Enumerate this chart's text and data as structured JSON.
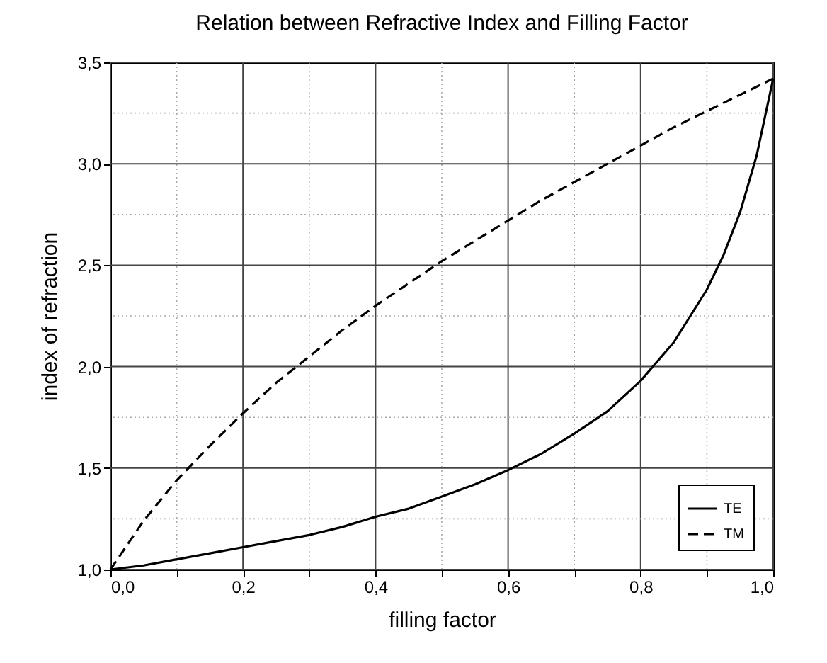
{
  "chart_data": {
    "type": "line",
    "title": "Relation between Refractive Index and Filling Factor",
    "xlabel": "filling factor",
    "ylabel": "index of refraction",
    "xlim": [
      0,
      1
    ],
    "ylim": [
      1,
      3.5
    ],
    "xticks": [
      {
        "value": 0,
        "label": "0,0"
      },
      {
        "value": 0.1,
        "label": null
      },
      {
        "value": 0.2,
        "label": "0,2"
      },
      {
        "value": 0.3,
        "label": null
      },
      {
        "value": 0.4,
        "label": "0,4"
      },
      {
        "value": 0.5,
        "label": null
      },
      {
        "value": 0.6,
        "label": "0,6"
      },
      {
        "value": 0.7,
        "label": null
      },
      {
        "value": 0.8,
        "label": "0,8"
      },
      {
        "value": 0.9,
        "label": null
      },
      {
        "value": 1,
        "label": "1,0"
      }
    ],
    "yticks": [
      {
        "value": 1,
        "label": "1,0"
      },
      {
        "value": 1.25,
        "label": null
      },
      {
        "value": 1.5,
        "label": "1,5"
      },
      {
        "value": 1.75,
        "label": null
      },
      {
        "value": 2,
        "label": "2,0"
      },
      {
        "value": 2.25,
        "label": null
      },
      {
        "value": 2.5,
        "label": "2,5"
      },
      {
        "value": 2.75,
        "label": null
      },
      {
        "value": 3,
        "label": "3,0"
      },
      {
        "value": 3.25,
        "label": null
      },
      {
        "value": 3.5,
        "label": "3,5"
      }
    ],
    "grid": true,
    "legend": "bottom right",
    "marker": "none",
    "series": [
      {
        "name": "TE",
        "color": "#000000",
        "line_style": "solid",
        "x": [
          0,
          0.05,
          0.1,
          0.15,
          0.2,
          0.25,
          0.3,
          0.35,
          0.4,
          0.45,
          0.5,
          0.55,
          0.6,
          0.65,
          0.7,
          0.75,
          0.8,
          0.85,
          0.9,
          0.925,
          0.95,
          0.975,
          1
        ],
        "values": [
          1,
          1.02,
          1.05,
          1.08,
          1.11,
          1.14,
          1.17,
          1.21,
          1.26,
          1.3,
          1.36,
          1.42,
          1.49,
          1.57,
          1.67,
          1.78,
          1.93,
          2.12,
          2.38,
          2.55,
          2.76,
          3.04,
          3.42
        ]
      },
      {
        "name": "TM",
        "color": "#000000",
        "line_style": "dashed",
        "x": [
          0,
          0.05,
          0.1,
          0.15,
          0.2,
          0.25,
          0.3,
          0.35,
          0.4,
          0.45,
          0.5,
          0.55,
          0.6,
          0.65,
          0.7,
          0.75,
          0.8,
          0.85,
          0.9,
          0.95,
          1
        ],
        "values": [
          1,
          1.24,
          1.44,
          1.61,
          1.77,
          1.92,
          2.05,
          2.18,
          2.3,
          2.41,
          2.52,
          2.62,
          2.72,
          2.82,
          2.91,
          3,
          3.09,
          3.18,
          3.26,
          3.34,
          3.42
        ]
      }
    ]
  }
}
